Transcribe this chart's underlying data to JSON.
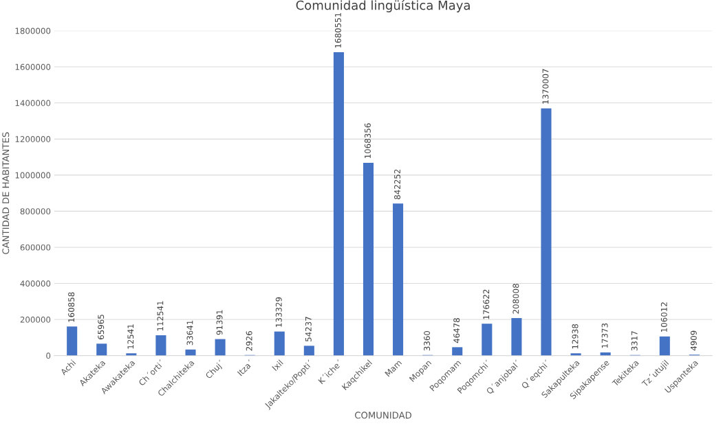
{
  "chart_data": {
    "type": "bar",
    "title": "Comunidad lingüística Maya",
    "xlabel": "COMUNIDAD",
    "ylabel": "CANTIDAD DE HABITANTES",
    "categories": [
      "Achi",
      "Akateka",
      "Awakateka",
      "Ch´orti´",
      "Chalchiteka",
      "Chuj´",
      "Itza´",
      "Ixil",
      "Jakalteko/Popti´",
      "K´iche´",
      "Kaqchikel",
      "Mam",
      "Mopan",
      "Poqomam",
      "Poqomchi´",
      "Q´anjobal´",
      "Q´eqchi´",
      "Sakapulteka",
      "Sipakapense",
      "Tekiteka",
      "Tz´utujil",
      "Uspanteka"
    ],
    "values": [
      160858,
      65965,
      12541,
      112541,
      33641,
      91391,
      2926,
      133329,
      54237,
      1680551,
      1068356,
      842252,
      3360,
      46478,
      176622,
      208008,
      1370007,
      12938,
      17373,
      3317,
      106012,
      4909
    ],
    "color": "#4472c4",
    "data_labels": true,
    "grid": "y",
    "ylim": [
      0,
      1800000
    ],
    "yticks": [
      0,
      200000,
      400000,
      600000,
      800000,
      1000000,
      1200000,
      1400000,
      1600000,
      1800000
    ]
  }
}
